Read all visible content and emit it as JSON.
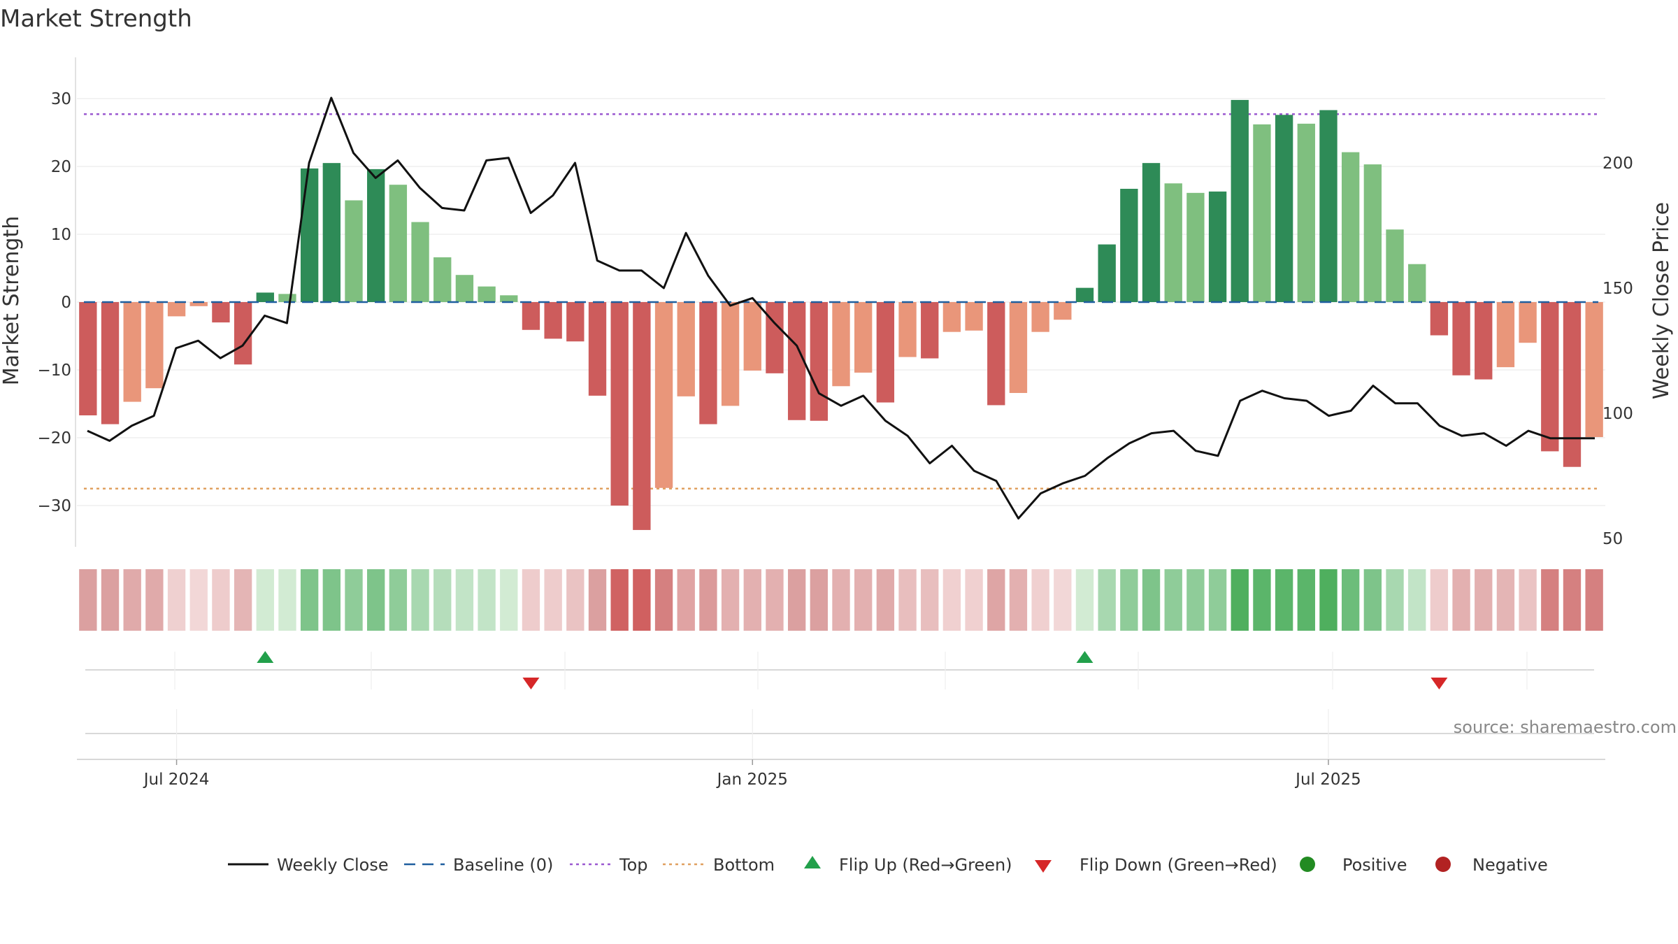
{
  "chart_data": {
    "type": "bar",
    "title": "Market Strength",
    "ylabel": "Market Strength",
    "y2label": "Weekly Close Price",
    "ylim": [
      -36,
      36
    ],
    "y2lim": [
      48,
      238
    ],
    "yticks": [
      -30,
      -20,
      -10,
      0,
      10,
      20,
      30
    ],
    "yticklabels": [
      "−30",
      "−20",
      "−10",
      "0",
      "10",
      "20",
      "30"
    ],
    "y2ticks": [
      50,
      100,
      150,
      200
    ],
    "y2ticklabels": [
      "50",
      "100",
      "150",
      "200"
    ],
    "xticks": [
      {
        "index": 4,
        "label": "Jul 2024"
      },
      {
        "index": 30,
        "label": "Jan 2025"
      },
      {
        "index": 56,
        "label": "Jul 2025"
      }
    ],
    "top_level": 27.7,
    "bottom_level": -27.5,
    "baseline": 0,
    "strength": [
      -16.7,
      -18.0,
      -14.7,
      -12.7,
      -2.1,
      -0.6,
      -3.0,
      -9.2,
      1.4,
      1.2,
      19.7,
      20.5,
      15.0,
      19.6,
      17.3,
      11.8,
      6.6,
      4.0,
      2.3,
      1.0,
      -4.1,
      -5.4,
      -5.8,
      -13.8,
      -30.0,
      -33.6,
      -27.4,
      -13.9,
      -18.0,
      -15.3,
      -10.1,
      -10.5,
      -17.4,
      -17.5,
      -12.4,
      -10.4,
      -14.8,
      -8.1,
      -8.3,
      -4.4,
      -4.2,
      -15.2,
      -13.4,
      -4.4,
      -2.6,
      2.1,
      8.5,
      16.7,
      20.5,
      17.5,
      16.1,
      16.3,
      29.8,
      26.2,
      27.6,
      26.3,
      28.3,
      22.1,
      20.3,
      10.7,
      5.6,
      -4.9,
      -10.8,
      -11.4,
      -9.6,
      -6.0,
      -22.0,
      -24.3,
      -19.9
    ],
    "close": [
      93,
      89,
      95,
      99,
      126,
      129,
      122,
      127,
      139,
      136,
      200,
      226,
      204,
      194,
      201,
      190,
      182,
      181,
      201,
      202,
      180,
      187,
      200,
      161,
      157,
      157,
      150,
      172,
      155,
      143,
      146,
      136,
      127,
      108,
      103,
      107,
      97,
      91,
      80,
      87,
      77,
      73,
      58,
      68,
      72,
      75,
      82,
      88,
      92,
      93,
      85,
      83,
      105,
      109,
      106,
      105,
      99,
      101,
      111,
      104,
      104,
      95,
      91,
      92,
      87,
      93,
      90,
      90,
      90
    ],
    "heat_colors": [
      "#dba0a0",
      "#dba0a0",
      "#e0aaaa",
      "#e0aaaa",
      "#efd0d0",
      "#f2d7d7",
      "#eecccc",
      "#e4b5b5",
      "#d2ebd3",
      "#d2ebd3",
      "#7ec48a",
      "#7ec48a",
      "#8fcc99",
      "#7ec48a",
      "#8fcc99",
      "#a8d8b0",
      "#b5ddbb",
      "#c2e4c7",
      "#c2e4c7",
      "#d2ebd3",
      "#eecccc",
      "#eecccc",
      "#eac3c3",
      "#dba0a0",
      "#d06262",
      "#d06060",
      "#d58080",
      "#e0a3a3",
      "#db9a9a",
      "#e3b0b0",
      "#e3b0b0",
      "#e3b0b0",
      "#dba0a0",
      "#dba0a0",
      "#e3b0b0",
      "#e3b0b0",
      "#e0aaaa",
      "#e8bebe",
      "#e8bebe",
      "#f0d0d0",
      "#f0d0d0",
      "#dea5a5",
      "#e3b0b0",
      "#f0d0d0",
      "#f2d7d7",
      "#d2ebd3",
      "#a8d8b0",
      "#8fcc99",
      "#7ec48a",
      "#8fcc99",
      "#8fcc99",
      "#8fcc99",
      "#4faf5e",
      "#5bb56a",
      "#5bb56a",
      "#5bb56a",
      "#4faf5e",
      "#6cbd7a",
      "#7ec48a",
      "#a8d8b0",
      "#c2e4c7",
      "#eecccc",
      "#e3b0b0",
      "#e3b0b0",
      "#e4b5b5",
      "#eac3c3",
      "#d58080",
      "#d58080",
      "#d58080"
    ],
    "flip_up": [
      8,
      45
    ],
    "flip_down": [
      20,
      61
    ],
    "legend": [
      {
        "kind": "line",
        "label": "Weekly Close"
      },
      {
        "kind": "dash",
        "label": "Baseline (0)"
      },
      {
        "kind": "dot-purple",
        "label": "Top"
      },
      {
        "kind": "dot-orange",
        "label": "Bottom"
      },
      {
        "kind": "tri-up",
        "label": "Flip Up (Red→Green)"
      },
      {
        "kind": "tri-down",
        "label": "Flip Down (Green→Red)"
      },
      {
        "kind": "circle-green",
        "label": "Positive"
      },
      {
        "kind": "circle-red",
        "label": "Negative"
      }
    ],
    "source": "source: sharemaestro.com"
  },
  "colors": {
    "strong_green": "#2e8b57",
    "light_green": "#7fbf7f",
    "strong_red": "#cd5c5c",
    "light_red": "#e9967a",
    "close_line": "#111111",
    "baseline": "#1f5f9f",
    "top": "#9b59d0",
    "bottom": "#e0a060",
    "flip_up": "#22a04b",
    "flip_down": "#d62728",
    "positive": "#228b22",
    "negative": "#b22222"
  }
}
